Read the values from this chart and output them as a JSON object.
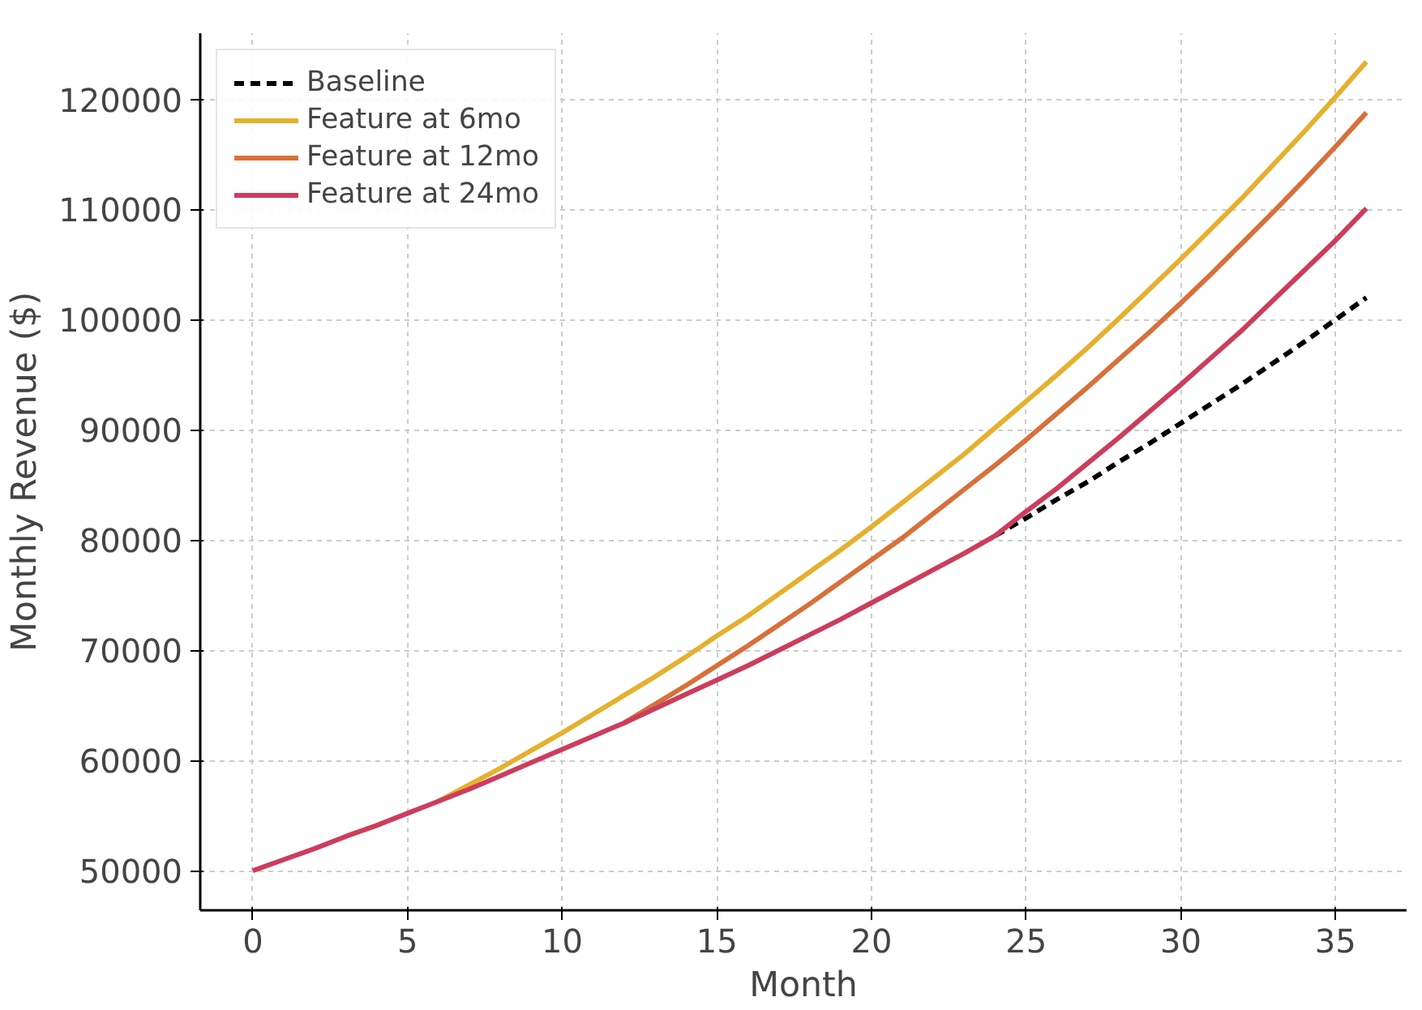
{
  "chart_data": {
    "type": "line",
    "xlabel": "Month",
    "ylabel": "Monthly Revenue ($)",
    "x": [
      0,
      1,
      2,
      3,
      4,
      5,
      6,
      7,
      8,
      9,
      10,
      11,
      12,
      13,
      14,
      15,
      16,
      17,
      18,
      19,
      20,
      21,
      22,
      23,
      24,
      25,
      26,
      27,
      28,
      29,
      30,
      31,
      32,
      33,
      34,
      35,
      36
    ],
    "series": [
      {
        "name": "Baseline",
        "color": "#000000",
        "line_style": "dashed",
        "values": [
          null,
          null,
          null,
          null,
          null,
          null,
          null,
          null,
          null,
          null,
          null,
          null,
          null,
          null,
          null,
          null,
          null,
          null,
          null,
          null,
          null,
          null,
          null,
          null,
          80400,
          82000,
          83700,
          85300,
          87100,
          88800,
          90600,
          92400,
          94200,
          96100,
          98000,
          100000,
          102000
        ]
      },
      {
        "name": "Feature at 6mo",
        "color": "#e6b02e",
        "line_style": "solid",
        "values": [
          null,
          null,
          null,
          null,
          null,
          null,
          56300,
          57800,
          59300,
          60900,
          62500,
          64200,
          65900,
          67600,
          69400,
          71300,
          73100,
          75100,
          77100,
          79100,
          81200,
          83400,
          85600,
          87800,
          90200,
          92600,
          95000,
          97500,
          100100,
          102800,
          105500,
          108300,
          111100,
          114100,
          117100,
          120200,
          123400
        ]
      },
      {
        "name": "Feature at 12mo",
        "color": "#d8703a",
        "line_style": "solid",
        "values": [
          null,
          null,
          null,
          null,
          null,
          null,
          null,
          null,
          null,
          null,
          null,
          null,
          63400,
          65100,
          66800,
          68600,
          70400,
          72300,
          74200,
          76200,
          78200,
          80200,
          82400,
          84600,
          86800,
          89100,
          91500,
          93900,
          96400,
          98900,
          101500,
          104200,
          107000,
          109800,
          112700,
          115700,
          118800
        ]
      },
      {
        "name": "Feature at 24mo",
        "color": "#cc3d5c",
        "line_style": "solid",
        "values": [
          50000,
          51000,
          52000,
          53100,
          54100,
          55200,
          56300,
          57400,
          58600,
          59800,
          61000,
          62200,
          63400,
          64700,
          66000,
          67300,
          68600,
          70000,
          71400,
          72800,
          74300,
          75800,
          77300,
          78800,
          80400,
          82600,
          84700,
          87000,
          89300,
          91700,
          94100,
          96600,
          99100,
          101800,
          104500,
          107200,
          110100
        ]
      }
    ],
    "xlim": [
      -1.7,
      37.3
    ],
    "xticks": [
      0,
      5,
      10,
      15,
      20,
      25,
      30,
      35
    ],
    "ylim": [
      46400,
      126000
    ],
    "yticks": [
      50000,
      60000,
      70000,
      80000,
      90000,
      100000,
      110000,
      120000
    ],
    "grid": true,
    "legend": "top left",
    "marker": "none"
  }
}
